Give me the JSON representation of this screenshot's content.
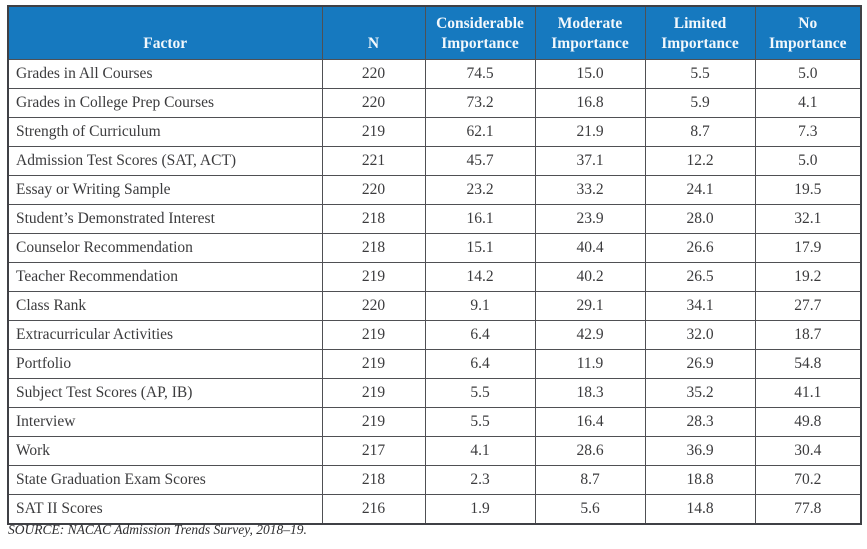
{
  "chart_data": {
    "type": "table",
    "columns": [
      "Factor",
      "N",
      "Considerable Importance",
      "Moderate Importance",
      "Limited Importance",
      "No Importance"
    ],
    "rows": [
      [
        "Grades in All Courses",
        "220",
        "74.5",
        "15.0",
        "5.5",
        "5.0"
      ],
      [
        "Grades in College Prep Courses",
        "220",
        "73.2",
        "16.8",
        "5.9",
        "4.1"
      ],
      [
        "Strength of Curriculum",
        "219",
        "62.1",
        "21.9",
        "8.7",
        "7.3"
      ],
      [
        "Admission Test Scores (SAT, ACT)",
        "221",
        "45.7",
        "37.1",
        "12.2",
        "5.0"
      ],
      [
        "Essay or Writing Sample",
        "220",
        "23.2",
        "33.2",
        "24.1",
        "19.5"
      ],
      [
        "Student’s Demonstrated Interest",
        "218",
        "16.1",
        "23.9",
        "28.0",
        "32.1"
      ],
      [
        "Counselor Recommendation",
        "218",
        "15.1",
        "40.4",
        "26.6",
        "17.9"
      ],
      [
        "Teacher Recommendation",
        "219",
        "14.2",
        "40.2",
        "26.5",
        "19.2"
      ],
      [
        "Class Rank",
        "220",
        "9.1",
        "29.1",
        "34.1",
        "27.7"
      ],
      [
        "Extracurricular Activities",
        "219",
        "6.4",
        "42.9",
        "32.0",
        "18.7"
      ],
      [
        "Portfolio",
        "219",
        "6.4",
        "11.9",
        "26.9",
        "54.8"
      ],
      [
        "Subject Test Scores (AP, IB)",
        "219",
        "5.5",
        "18.3",
        "35.2",
        "41.1"
      ],
      [
        "Interview",
        "219",
        "5.5",
        "16.4",
        "28.3",
        "49.8"
      ],
      [
        "Work",
        "217",
        "4.1",
        "28.6",
        "36.9",
        "30.4"
      ],
      [
        "State Graduation Exam Scores",
        "218",
        "2.3",
        "8.7",
        "18.8",
        "70.2"
      ],
      [
        "SAT II Scores",
        "216",
        "1.9",
        "5.6",
        "14.8",
        "77.8"
      ]
    ],
    "source": "SOURCE: NACAC Admission Trends Survey, 2018–19.",
    "layout_hints": {
      "header_two_line_columns": [
        "Considerable Importance",
        "Moderate Importance",
        "Limited Importance",
        "No Importance"
      ],
      "grid": "on"
    }
  },
  "colors": {
    "header_bg": "#1679bf",
    "header_text": "#f2f8fc",
    "border": "#4f5054",
    "body_text": "#3b3b3d"
  }
}
